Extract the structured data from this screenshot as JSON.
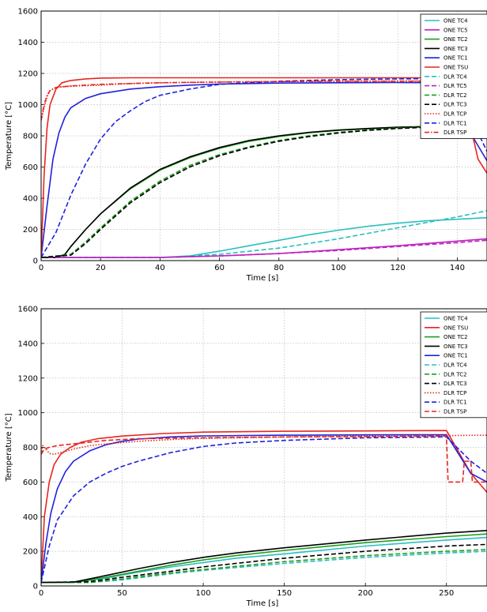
{
  "chart_data": [
    {
      "type": "line",
      "xlabel": "Time [s]",
      "ylabel": "Temperature [°C]",
      "xlim": [
        0,
        150
      ],
      "ylim": [
        0,
        1600
      ],
      "xticks": [
        "0",
        "20",
        "40",
        "60",
        "80",
        "100",
        "120",
        "140"
      ],
      "yticks": [
        "0",
        "200",
        "400",
        "600",
        "800",
        "1000",
        "1200",
        "1400",
        "1600"
      ],
      "grid": true,
      "legend_position": "top-right",
      "series": [
        {
          "name": "ONE TC4",
          "color": "#2ABFBF",
          "dash": "solid",
          "x": [
            0,
            40,
            50,
            60,
            70,
            80,
            90,
            100,
            110,
            120,
            130,
            150
          ],
          "y": [
            20,
            20,
            30,
            60,
            95,
            130,
            165,
            195,
            220,
            240,
            255,
            275
          ]
        },
        {
          "name": "ONE TC5",
          "color": "#BF22BF",
          "dash": "solid",
          "x": [
            0,
            40,
            60,
            80,
            100,
            120,
            140,
            150
          ],
          "y": [
            20,
            20,
            30,
            45,
            70,
            95,
            125,
            140
          ]
        },
        {
          "name": "ONE TC2",
          "color": "#1F9E1F",
          "dash": "solid",
          "x": [
            0,
            5,
            8,
            10,
            15,
            20,
            30,
            40,
            50,
            60,
            70,
            80,
            90,
            100,
            110,
            120,
            130,
            140,
            150
          ],
          "y": [
            20,
            20,
            40,
            90,
            200,
            300,
            460,
            580,
            660,
            720,
            765,
            795,
            820,
            835,
            845,
            852,
            857,
            860,
            862
          ]
        },
        {
          "name": "ONE TC3",
          "color": "#000000",
          "dash": "solid",
          "x": [
            0,
            5,
            8,
            10,
            15,
            20,
            30,
            40,
            50,
            60,
            70,
            80,
            90,
            100,
            110,
            120,
            130,
            140,
            150
          ],
          "y": [
            20,
            20,
            40,
            90,
            200,
            300,
            465,
            585,
            665,
            725,
            770,
            800,
            822,
            837,
            847,
            855,
            860,
            862,
            864
          ]
        },
        {
          "name": "ONE TC1",
          "color": "#1F22DD",
          "dash": "solid",
          "x": [
            0,
            2,
            4,
            6,
            8,
            10,
            15,
            20,
            30,
            40,
            50,
            60,
            80,
            100,
            120,
            140,
            145,
            150
          ],
          "y": [
            20,
            350,
            650,
            820,
            920,
            980,
            1040,
            1070,
            1100,
            1115,
            1125,
            1132,
            1138,
            1140,
            1142,
            1140,
            800,
            640
          ]
        },
        {
          "name": "ONE TSU",
          "color": "#E8251F",
          "dash": "solid",
          "x": [
            0,
            1,
            2,
            3,
            5,
            7,
            10,
            15,
            20,
            30,
            40,
            60,
            80,
            100,
            120,
            140,
            144,
            147,
            150
          ],
          "y": [
            20,
            550,
            850,
            1000,
            1100,
            1140,
            1155,
            1165,
            1170,
            1172,
            1172,
            1172,
            1172,
            1172,
            1172,
            1172,
            900,
            650,
            560
          ]
        },
        {
          "name": "DLR TC4",
          "color": "#2ABFBF",
          "dash": "dashed",
          "x": [
            0,
            40,
            60,
            80,
            100,
            120,
            140,
            150
          ],
          "y": [
            20,
            20,
            40,
            80,
            140,
            210,
            280,
            320
          ]
        },
        {
          "name": "DLR TC5",
          "color": "#BF22BF",
          "dash": "dashed",
          "x": [
            0,
            40,
            60,
            80,
            100,
            120,
            140,
            150
          ],
          "y": [
            20,
            20,
            30,
            45,
            65,
            90,
            115,
            130
          ]
        },
        {
          "name": "DLR TC2",
          "color": "#1F9E1F",
          "dash": "dashed",
          "x": [
            0,
            10,
            15,
            20,
            30,
            40,
            50,
            60,
            70,
            80,
            90,
            100,
            110,
            120,
            130,
            140,
            150
          ],
          "y": [
            20,
            40,
            120,
            210,
            380,
            510,
            610,
            680,
            730,
            770,
            800,
            822,
            838,
            850,
            858,
            862,
            865
          ]
        },
        {
          "name": "DLR TC3",
          "color": "#000000",
          "dash": "dashed",
          "x": [
            0,
            10,
            15,
            20,
            30,
            40,
            50,
            60,
            70,
            80,
            90,
            100,
            110,
            120,
            130,
            140,
            150
          ],
          "y": [
            20,
            35,
            110,
            200,
            370,
            500,
            600,
            672,
            725,
            765,
            795,
            818,
            835,
            847,
            855,
            860,
            862
          ]
        },
        {
          "name": "DLR TCP",
          "color": "#E8251F",
          "dash": "dotted",
          "x": [
            0,
            1,
            2,
            3,
            5,
            7,
            10,
            20,
            30,
            40,
            60,
            80,
            100,
            120,
            140,
            150
          ],
          "y": [
            900,
            980,
            1050,
            1090,
            1110,
            1115,
            1118,
            1125,
            1135,
            1140,
            1145,
            1148,
            1150,
            1152,
            1152,
            1152
          ]
        },
        {
          "name": "DLR TC1",
          "color": "#1F22DD",
          "dash": "dashed",
          "x": [
            0,
            5,
            10,
            15,
            20,
            25,
            30,
            35,
            40,
            50,
            60,
            80,
            100,
            120,
            140,
            145,
            150
          ],
          "y": [
            20,
            180,
            420,
            620,
            780,
            890,
            960,
            1020,
            1060,
            1100,
            1130,
            1150,
            1160,
            1165,
            1168,
            900,
            700
          ]
        },
        {
          "name": "DLR TSP",
          "color": "#E8251F",
          "dash": "dashdot",
          "x": [
            0,
            1,
            2,
            3,
            5,
            10,
            20,
            30,
            40,
            60,
            80,
            100,
            120,
            140,
            150
          ],
          "y": [
            900,
            1000,
            1060,
            1090,
            1110,
            1120,
            1130,
            1135,
            1140,
            1145,
            1148,
            1150,
            1150,
            1150,
            1150
          ]
        }
      ]
    },
    {
      "type": "line",
      "xlabel": "Time [s]",
      "ylabel": "Temperature [°C]",
      "xlim": [
        0,
        275
      ],
      "ylim": [
        0,
        1600
      ],
      "xticks": [
        "0",
        "50",
        "100",
        "150",
        "200",
        "250"
      ],
      "yticks": [
        "0",
        "200",
        "400",
        "600",
        "800",
        "1000",
        "1200",
        "1400",
        "1600"
      ],
      "grid": true,
      "legend_position": "top-right",
      "series": [
        {
          "name": "ONE TC4",
          "color": "#2ABFBF",
          "dash": "solid",
          "x": [
            0,
            20,
            40,
            60,
            80,
            100,
            120,
            150,
            200,
            250,
            275
          ],
          "y": [
            20,
            20,
            45,
            80,
            110,
            135,
            160,
            185,
            230,
            265,
            280
          ]
        },
        {
          "name": "ONE TSU",
          "color": "#E8251F",
          "dash": "solid",
          "x": [
            0,
            2,
            5,
            8,
            12,
            18,
            25,
            35,
            50,
            75,
            100,
            150,
            200,
            250,
            265,
            275
          ],
          "y": [
            20,
            400,
            600,
            700,
            760,
            800,
            830,
            850,
            865,
            880,
            888,
            893,
            895,
            897,
            650,
            540
          ]
        },
        {
          "name": "ONE TC2",
          "color": "#1F9E1F",
          "dash": "solid",
          "x": [
            0,
            20,
            40,
            60,
            80,
            100,
            120,
            150,
            200,
            250,
            275
          ],
          "y": [
            20,
            20,
            50,
            85,
            120,
            150,
            175,
            205,
            250,
            285,
            300
          ]
        },
        {
          "name": "ONE TC3",
          "color": "#000000",
          "dash": "solid",
          "x": [
            0,
            20,
            40,
            60,
            80,
            100,
            120,
            150,
            200,
            250,
            275
          ],
          "y": [
            20,
            22,
            60,
            100,
            135,
            165,
            190,
            220,
            265,
            305,
            320
          ]
        },
        {
          "name": "ONE TC1",
          "color": "#1F22DD",
          "dash": "solid",
          "x": [
            0,
            3,
            6,
            10,
            15,
            20,
            30,
            40,
            50,
            60,
            80,
            100,
            150,
            200,
            250,
            265,
            275
          ],
          "y": [
            20,
            250,
            420,
            560,
            660,
            720,
            780,
            815,
            835,
            848,
            860,
            866,
            870,
            872,
            873,
            650,
            600
          ]
        },
        {
          "name": "DLR TC4",
          "color": "#2ABFBF",
          "dash": "dashed",
          "x": [
            0,
            30,
            50,
            80,
            100,
            150,
            200,
            250,
            275
          ],
          "y": [
            20,
            20,
            35,
            70,
            90,
            130,
            165,
            190,
            200
          ]
        },
        {
          "name": "DLR TC2",
          "color": "#1F9E1F",
          "dash": "dashed",
          "x": [
            0,
            30,
            50,
            80,
            100,
            150,
            200,
            250,
            275
          ],
          "y": [
            20,
            20,
            40,
            75,
            95,
            140,
            175,
            200,
            210
          ]
        },
        {
          "name": "DLR TC3",
          "color": "#000000",
          "dash": "dashed",
          "x": [
            0,
            30,
            50,
            80,
            100,
            150,
            200,
            250,
            275
          ],
          "y": [
            20,
            25,
            50,
            85,
            110,
            160,
            200,
            230,
            240
          ]
        },
        {
          "name": "DLR TCP",
          "color": "#E8251F",
          "dash": "dotted",
          "x": [
            0,
            1,
            3,
            5,
            8,
            12,
            20,
            30,
            40,
            60,
            80,
            100,
            150,
            200,
            250,
            275
          ],
          "y": [
            760,
            810,
            790,
            765,
            760,
            770,
            790,
            810,
            820,
            835,
            845,
            852,
            860,
            865,
            868,
            870
          ]
        },
        {
          "name": "DLR TC1",
          "color": "#1F22DD",
          "dash": "dashed",
          "x": [
            0,
            5,
            10,
            20,
            30,
            40,
            50,
            60,
            80,
            100,
            120,
            150,
            200,
            250,
            265,
            275
          ],
          "y": [
            20,
            230,
            380,
            520,
            600,
            650,
            690,
            720,
            770,
            805,
            825,
            840,
            855,
            860,
            720,
            650
          ]
        },
        {
          "name": "DLR TSP",
          "color": "#E8251F",
          "dash": "dashed",
          "x": [
            0,
            2,
            5,
            10,
            20,
            40,
            60,
            100,
            150,
            200,
            250,
            251,
            260,
            261,
            265,
            266,
            270,
            275
          ],
          "y": [
            760,
            790,
            800,
            810,
            820,
            840,
            850,
            855,
            860,
            862,
            865,
            600,
            600,
            720,
            720,
            600,
            600,
            600
          ]
        }
      ]
    }
  ]
}
